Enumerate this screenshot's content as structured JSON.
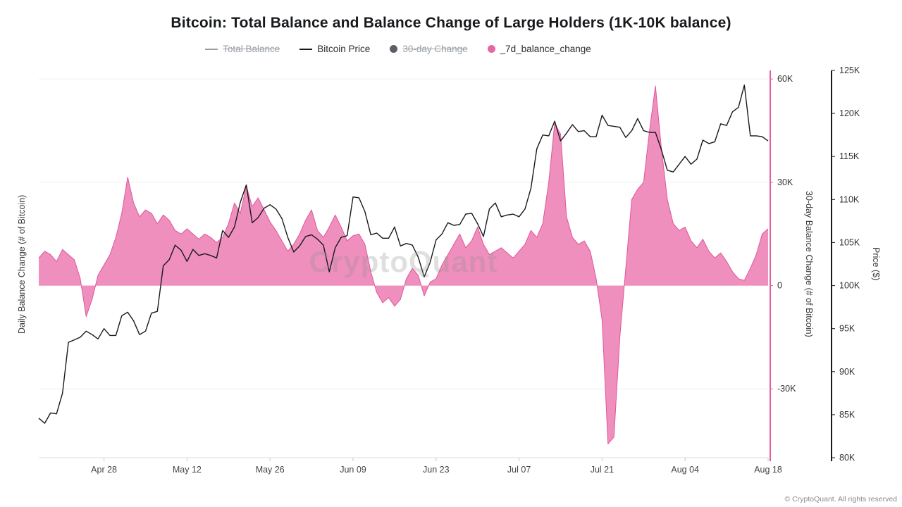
{
  "title": "Bitcoin: Total Balance and Balance Change of Large Holders (1K-10K balance)",
  "watermark": "CryptoQuant",
  "footer": "© CryptoQuant. All rights reserved",
  "legend": [
    {
      "label": "Total Balance",
      "type": "line",
      "color": "#9aa0a6",
      "disabled": true
    },
    {
      "label": "Bitcoin Price",
      "type": "line",
      "color": "#17191c",
      "disabled": false
    },
    {
      "label": "30-day Change",
      "type": "dot",
      "color": "#5d5d68",
      "disabled": true
    },
    {
      "label": "_7d_balance_change",
      "type": "dot",
      "color": "#e767a5",
      "disabled": false
    }
  ],
  "axis_labels": {
    "left": "Daily Balance Change (# of Bitcoin)",
    "right_balance": "30-day Balance Change (# of Bitcoin)",
    "right_price": "Price ($)"
  },
  "chart_data": {
    "type": "area+line",
    "title": "Bitcoin: Total Balance and Balance Change of Large Holders (1K-10K balance)",
    "legend_position": "top",
    "grid": "faint-horizontal",
    "x_tick_labels": [
      "Apr 28",
      "May 12",
      "May 26",
      "Jun 09",
      "Jun 23",
      "Jul 07",
      "Jul 21",
      "Aug 04",
      "Aug 18"
    ],
    "x_tick_indices": [
      11,
      25,
      39,
      53,
      67,
      81,
      95,
      109,
      123
    ],
    "x": [
      "Apr 17",
      "Apr 18",
      "Apr 19",
      "Apr 20",
      "Apr 21",
      "Apr 22",
      "Apr 23",
      "Apr 24",
      "Apr 25",
      "Apr 26",
      "Apr 27",
      "Apr 28",
      "Apr 29",
      "Apr 30",
      "May 01",
      "May 02",
      "May 03",
      "May 04",
      "May 05",
      "May 06",
      "May 07",
      "May 08",
      "May 09",
      "May 10",
      "May 11",
      "May 12",
      "May 13",
      "May 14",
      "May 15",
      "May 16",
      "May 17",
      "May 18",
      "May 19",
      "May 20",
      "May 21",
      "May 22",
      "May 23",
      "May 24",
      "May 25",
      "May 26",
      "May 27",
      "May 28",
      "May 29",
      "May 30",
      "May 31",
      "Jun 01",
      "Jun 02",
      "Jun 03",
      "Jun 04",
      "Jun 05",
      "Jun 06",
      "Jun 07",
      "Jun 08",
      "Jun 09",
      "Jun 10",
      "Jun 11",
      "Jun 12",
      "Jun 13",
      "Jun 14",
      "Jun 15",
      "Jun 16",
      "Jun 17",
      "Jun 18",
      "Jun 19",
      "Jun 20",
      "Jun 21",
      "Jun 22",
      "Jun 23",
      "Jun 24",
      "Jun 25",
      "Jun 26",
      "Jun 27",
      "Jun 28",
      "Jun 29",
      "Jun 30",
      "Jul 01",
      "Jul 02",
      "Jul 03",
      "Jul 04",
      "Jul 05",
      "Jul 06",
      "Jul 07",
      "Jul 08",
      "Jul 09",
      "Jul 10",
      "Jul 11",
      "Jul 12",
      "Jul 13",
      "Jul 14",
      "Jul 15",
      "Jul 16",
      "Jul 17",
      "Jul 18",
      "Jul 19",
      "Jul 20",
      "Jul 21",
      "Jul 22",
      "Jul 23",
      "Jul 24",
      "Jul 25",
      "Jul 26",
      "Jul 27",
      "Jul 28",
      "Jul 29",
      "Jul 30",
      "Jul 31",
      "Aug 01",
      "Aug 02",
      "Aug 03",
      "Aug 04",
      "Aug 05",
      "Aug 06",
      "Aug 07",
      "Aug 08",
      "Aug 09",
      "Aug 10",
      "Aug 11",
      "Aug 12",
      "Aug 13",
      "Aug 14",
      "Aug 15",
      "Aug 16",
      "Aug 17",
      "Aug 18"
    ],
    "series": [
      {
        "name": "_7d_balance_change",
        "type": "area",
        "axis": "balance",
        "color": "#ee86b8",
        "line_color": "#e2559b",
        "values": [
          8000,
          10000,
          9000,
          7000,
          10500,
          9000,
          7500,
          2000,
          -9000,
          -4000,
          3000,
          6000,
          9000,
          14000,
          21000,
          31500,
          24000,
          20000,
          22000,
          21000,
          18000,
          20500,
          19000,
          16000,
          15000,
          16500,
          15000,
          13500,
          15000,
          14000,
          12500,
          14000,
          18000,
          24000,
          21000,
          29000,
          23000,
          25500,
          22000,
          18500,
          16000,
          13000,
          10000,
          12000,
          15000,
          19000,
          22000,
          16000,
          14000,
          17000,
          20500,
          17000,
          13000,
          14500,
          15000,
          12000,
          4000,
          -2000,
          -5000,
          -3500,
          -6000,
          -4000,
          2000,
          5000,
          3000,
          -3000,
          1000,
          2000,
          6000,
          9000,
          12000,
          15000,
          11000,
          13000,
          17000,
          12000,
          9000,
          10000,
          11000,
          9500,
          8000,
          10000,
          12000,
          16000,
          14000,
          18000,
          30000,
          47000,
          44000,
          20000,
          14000,
          12000,
          13000,
          10000,
          2000,
          -10000,
          -46000,
          -44000,
          -15000,
          5000,
          25000,
          28000,
          30000,
          45000,
          58000,
          40000,
          25000,
          18000,
          16000,
          17000,
          13000,
          11000,
          13500,
          10000,
          8000,
          9500,
          7000,
          4000,
          2000,
          1500,
          5000,
          9000,
          15000,
          16500
        ]
      },
      {
        "name": "Bitcoin Price",
        "type": "line",
        "axis": "price",
        "color": "#17191c",
        "values": [
          84600,
          84000,
          85200,
          85100,
          87500,
          93400,
          93700,
          94000,
          94700,
          94300,
          93800,
          95000,
          94200,
          94200,
          96500,
          96900,
          95900,
          94300,
          94700,
          96800,
          97000,
          102300,
          103000,
          104700,
          104100,
          102800,
          104200,
          103500,
          103700,
          103500,
          103200,
          106400,
          105600,
          106800,
          109700,
          111700,
          107300,
          107900,
          109000,
          109400,
          108900,
          107800,
          105600,
          103900,
          104600,
          105700,
          105900,
          105400,
          104700,
          101600,
          104400,
          105600,
          105800,
          110300,
          110200,
          108600,
          105900,
          106100,
          105500,
          105500,
          106800,
          104600,
          104900,
          104700,
          103300,
          101000,
          102700,
          105300,
          106000,
          107300,
          107000,
          107100,
          108300,
          108400,
          107200,
          105700,
          108900,
          109600,
          108000,
          108200,
          108300,
          108000,
          108900,
          111300,
          115900,
          117500,
          117400,
          119100,
          116800,
          117700,
          118700,
          117900,
          118000,
          117300,
          117300,
          119800,
          118600,
          118500,
          118400,
          117200,
          118000,
          119400,
          118000,
          117800,
          117800,
          115800,
          113400,
          113200,
          114100,
          115000,
          114100,
          114700,
          116900,
          116500,
          116700,
          118800,
          118600,
          120200,
          120700,
          123300,
          117400,
          117400,
          117300,
          116800
        ]
      }
    ],
    "axes": {
      "balance": {
        "range": [
          -50000,
          62500
        ],
        "axis_color": "#e45c9f",
        "ticks": [
          {
            "value": 60000,
            "label": "60K"
          },
          {
            "value": 30000,
            "label": "30K"
          },
          {
            "value": 0,
            "label": "0"
          },
          {
            "value": -30000,
            "label": "-30K"
          }
        ]
      },
      "price": {
        "range": [
          80000,
          125000
        ],
        "axis_color": "#17191c",
        "ticks": [
          {
            "value": 125000,
            "label": "125K"
          },
          {
            "value": 120000,
            "label": "120K"
          },
          {
            "value": 115000,
            "label": "115K"
          },
          {
            "value": 110000,
            "label": "110K"
          },
          {
            "value": 105000,
            "label": "105K"
          },
          {
            "value": 100000,
            "label": "100K"
          },
          {
            "value": 95000,
            "label": "95K"
          },
          {
            "value": 90000,
            "label": "90K"
          },
          {
            "value": 85000,
            "label": "85K"
          },
          {
            "value": 80000,
            "label": "80K"
          }
        ]
      }
    }
  }
}
